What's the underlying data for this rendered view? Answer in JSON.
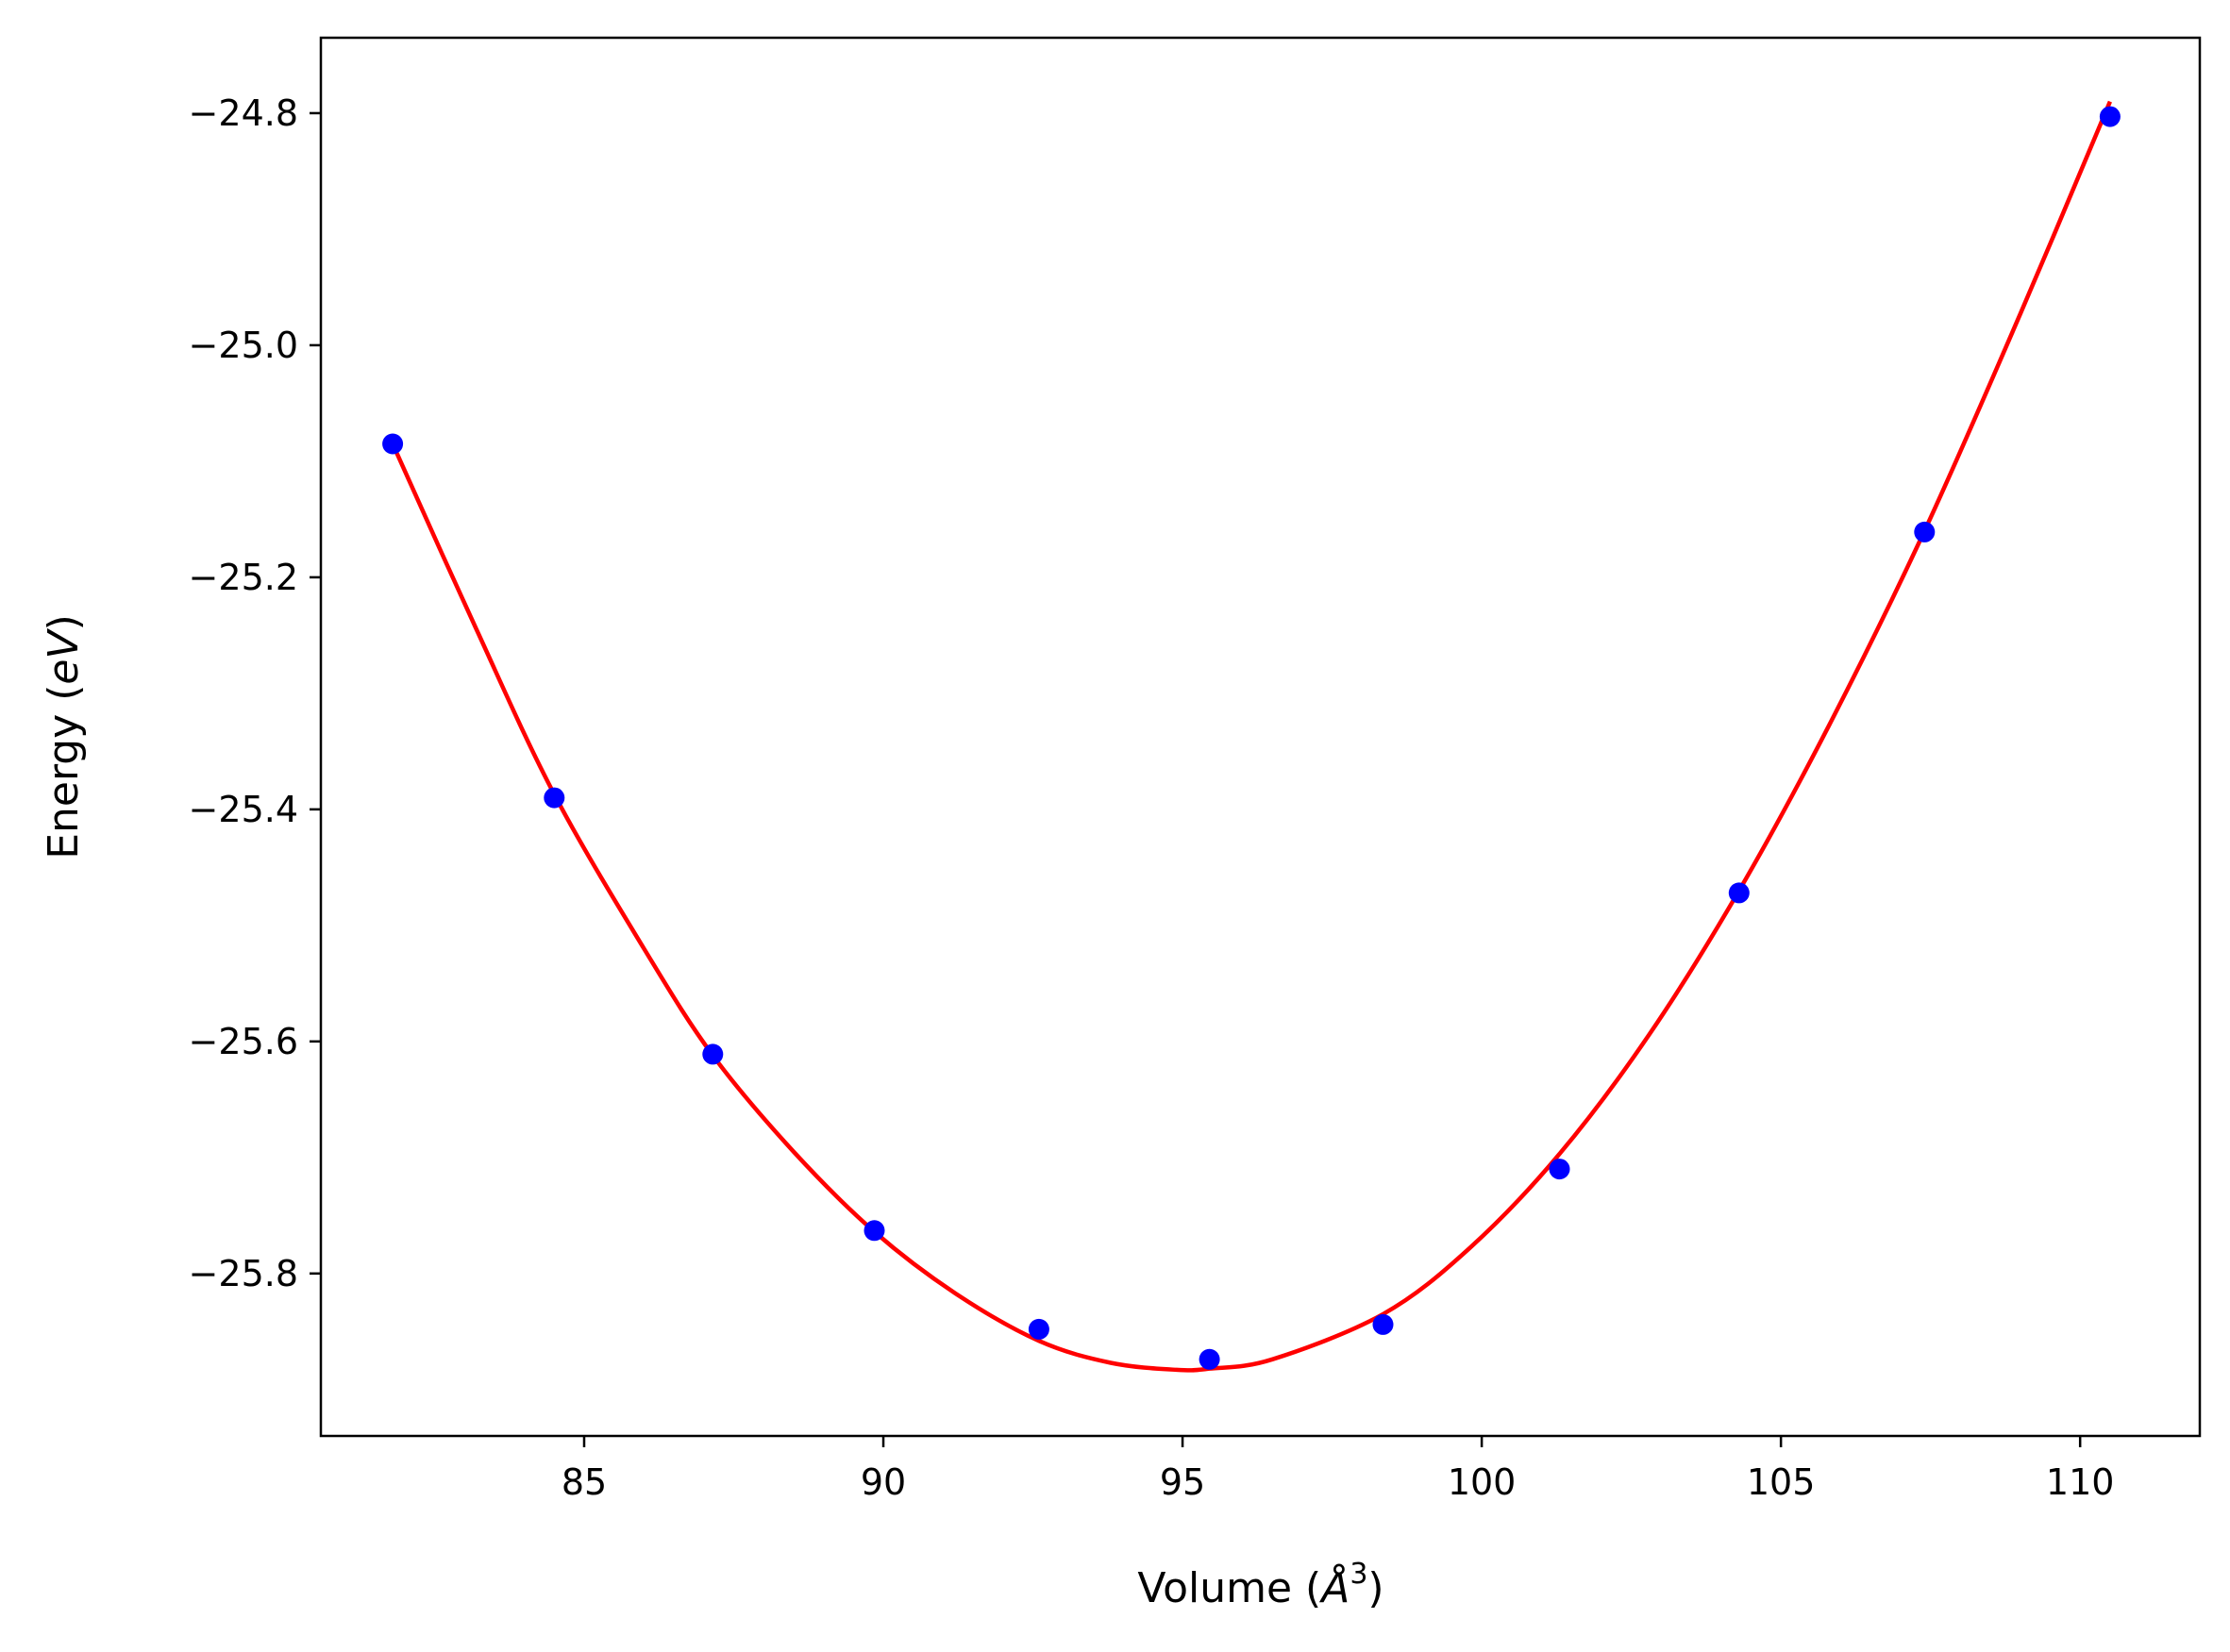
{
  "chart_data": {
    "type": "scatter",
    "title": "",
    "xlabel": "Volume (Å³)",
    "ylabel": "Energy (eV)",
    "xlabel_parts": [
      "Volume (",
      "Å",
      "3",
      ")"
    ],
    "ylabel_parts": [
      "Energy (",
      "eV",
      ")"
    ],
    "xlim": [
      80.6,
      112.0
    ],
    "ylim": [
      -25.94,
      -24.735
    ],
    "x_ticks": [
      85,
      90,
      95,
      100,
      105,
      110
    ],
    "x_tick_labels": [
      "85",
      "90",
      "95",
      "100",
      "105",
      "110"
    ],
    "y_ticks": [
      -24.8,
      -25.0,
      -25.2,
      -25.4,
      -25.6,
      -25.8
    ],
    "y_tick_labels": [
      "−24.8",
      "−25.0",
      "−25.2",
      "−25.4",
      "−25.6",
      "−25.8"
    ],
    "grid": false,
    "legend": "none",
    "series": [
      {
        "kind": "points",
        "color": "#0000ff",
        "x": [
          81.8,
          84.5,
          87.15,
          89.85,
          92.6,
          95.45,
          98.35,
          101.3,
          104.3,
          107.4,
          110.5
        ],
        "y": [
          -25.085,
          -25.39,
          -25.611,
          -25.763,
          -25.848,
          -25.874,
          -25.844,
          -25.71,
          -25.472,
          -25.161,
          -24.803
        ]
      },
      {
        "kind": "fit-curve",
        "color": "#ff0000",
        "x": [
          81.8,
          83.2,
          84.5,
          86.0,
          87.15,
          88.5,
          89.85,
          91.2,
          92.6,
          93.8,
          94.9,
          95.45,
          96.5,
          98.35,
          99.8,
          101.3,
          102.8,
          104.3,
          105.8,
          107.4,
          109.0,
          110.5
        ],
        "y": [
          -25.085,
          -25.245,
          -25.387,
          -25.52,
          -25.612,
          -25.695,
          -25.764,
          -25.817,
          -25.858,
          -25.877,
          -25.883,
          -25.882,
          -25.874,
          -25.835,
          -25.778,
          -25.697,
          -25.594,
          -25.47,
          -25.328,
          -25.16,
          -24.973,
          -24.79
        ]
      }
    ]
  }
}
